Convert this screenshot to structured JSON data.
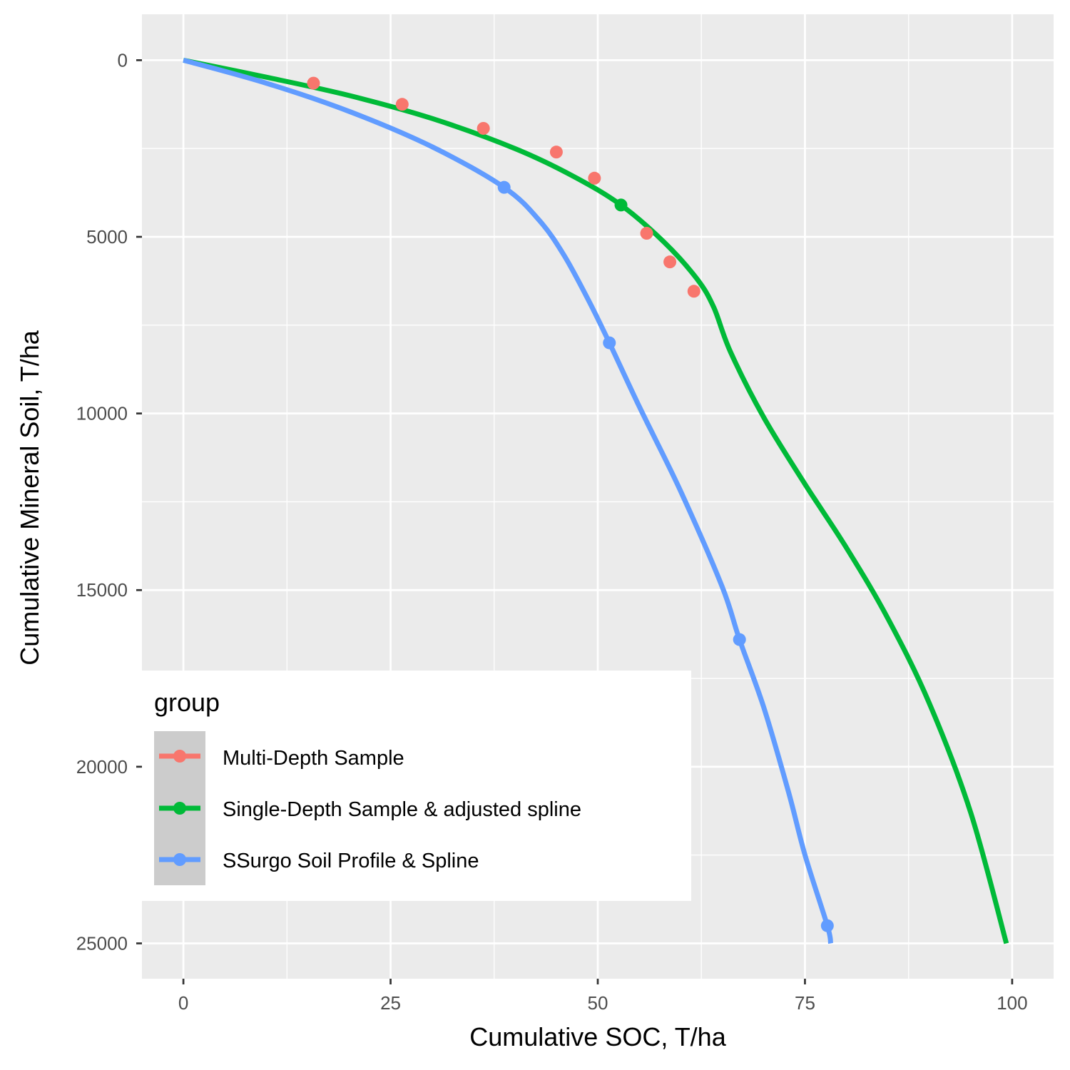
{
  "chart_data": {
    "type": "line",
    "xlabel": "Cumulative SOC, T/ha",
    "ylabel": "Cumulative Mineral Soil, T/ha",
    "xlim": [
      -5,
      105
    ],
    "ylim": [
      26000,
      -1300
    ],
    "y_reversed": true,
    "x_ticks": [
      0,
      25,
      50,
      75,
      100
    ],
    "y_ticks": [
      0,
      5000,
      10000,
      15000,
      20000,
      25000
    ],
    "grid": true,
    "legend": {
      "title": "group",
      "position": "bottom-left inside plot",
      "entries": [
        "Multi-Depth Sample",
        "Single-Depth Sample & adjusted spline",
        "SSurgo Soil Profile & Spline"
      ]
    },
    "series": [
      {
        "name": "Multi-Depth Sample",
        "color": "#F8766D",
        "kind": "points",
        "x": [
          15.7,
          26.4,
          36.2,
          45.0,
          49.6,
          55.9,
          58.7,
          61.6
        ],
        "y": [
          650,
          1250,
          1930,
          2600,
          3340,
          4900,
          5710,
          6540
        ]
      },
      {
        "name": "Single-Depth Sample & adjusted spline",
        "color": "#00BA38",
        "kind": "line",
        "x": [
          0,
          10,
          20,
          30,
          40,
          47,
          52.8,
          58,
          62,
          64,
          66,
          70,
          75,
          80,
          85,
          90,
          95,
          99.3
        ],
        "y": [
          0,
          480,
          1000,
          1650,
          2500,
          3280,
          4100,
          5150,
          6200,
          7000,
          8250,
          10100,
          12000,
          13800,
          15800,
          18200,
          21300,
          25000
        ],
        "markers": {
          "x": [
            52.8
          ],
          "y": [
            4100
          ]
        }
      },
      {
        "name": "SSurgo Soil Profile & Spline",
        "color": "#619CFF",
        "kind": "line",
        "x": [
          0,
          10,
          20,
          30,
          38.7,
          43,
          46,
          49,
          51.4,
          55,
          60,
          65,
          67.1,
          70,
          73,
          75,
          77.7,
          78.1
        ],
        "y": [
          0,
          650,
          1450,
          2450,
          3600,
          4550,
          5550,
          6850,
          8000,
          9800,
          12200,
          14900,
          16400,
          18300,
          20700,
          22500,
          24500,
          25000
        ],
        "markers": {
          "x": [
            38.7,
            51.4,
            67.1,
            77.7
          ],
          "y": [
            3600,
            8000,
            16400,
            24500
          ]
        }
      }
    ]
  },
  "colors": {
    "panel_background": "#EBEBEB",
    "grid": "#FFFFFF",
    "tick_text": "#4D4D4D"
  }
}
